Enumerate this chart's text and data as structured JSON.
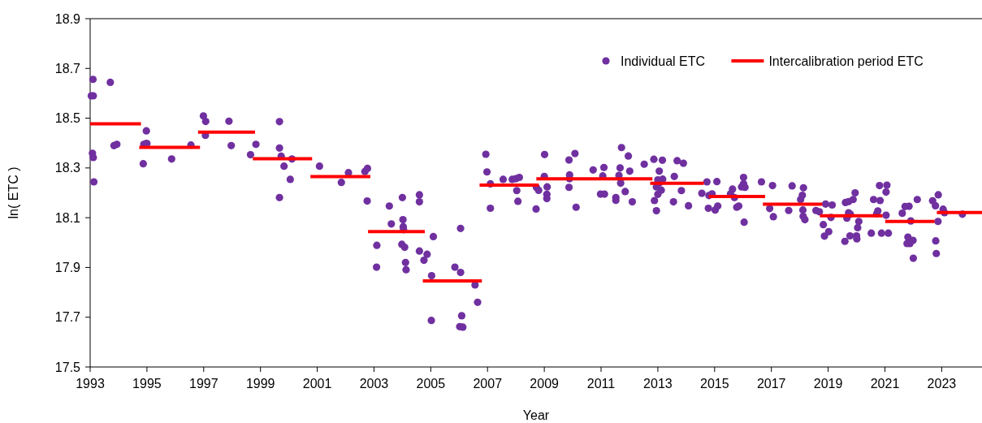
{
  "chart_data": {
    "type": "scatter",
    "xlabel": "Year",
    "ylabel": "ln( ETC )",
    "xlim": [
      1993,
      2024.42
    ],
    "xticks": [
      1993,
      1995,
      1997,
      1999,
      2001,
      2003,
      2005,
      2007,
      2009,
      2011,
      2013,
      2015,
      2017,
      2019,
      2021,
      2023
    ],
    "ylim": [
      17.5,
      18.9
    ],
    "yticks": [
      17.5,
      17.7,
      17.9,
      18.1,
      18.3,
      18.5,
      18.7,
      18.9
    ],
    "grid": false,
    "legend": "top right",
    "series": [
      {
        "name": "Individual ETC",
        "color": "#7030a0",
        "marker": "circle",
        "x": [
          1993.1,
          1993.04,
          1993.11,
          1993.71,
          1993.84,
          1993.94,
          1993.08,
          1993.11,
          1993.13,
          1994.98,
          1994.89,
          1994.97,
          1995.0,
          1994.87,
          1995.87,
          1996.55,
          1996.99,
          1997.07,
          1997.06,
          1997.89,
          1997.97,
          1998.65,
          1998.84,
          1999.67,
          1999.67,
          1999.73,
          1999.83,
          2000.11,
          2000.05,
          1999.67,
          2001.08,
          2001.85,
          2002.1,
          2002.68,
          2002.77,
          2002.76,
          2003.1,
          2003.09,
          2003.54,
          2003.61,
          2004.0,
          2004.02,
          2004.03,
          2004.04,
          2003.98,
          2004.08,
          2004.11,
          2004.13,
          2004.6,
          2004.6,
          2004.6,
          2004.87,
          2004.76,
          2005.09,
          2005.03,
          2005.02,
          2006.05,
          2005.85,
          2006.05,
          2006.09,
          2006.02,
          2006.13,
          2006.56,
          2006.65,
          2006.94,
          2006.98,
          2007.1,
          2007.1,
          2007.55,
          2007.87,
          2008.0,
          2008.12,
          2008.03,
          2008.07,
          2008.71,
          2008.72,
          2008.8,
          2009.01,
          2009.0,
          2009.1,
          2009.09,
          2009.09,
          2009.87,
          2010.08,
          2009.89,
          2009.89,
          2009.87,
          2010.12,
          2010.72,
          2011.1,
          2011.06,
          2010.98,
          2011.12,
          2011.52,
          2011.52,
          2011.72,
          2011.67,
          2011.63,
          2011.69,
          2011.96,
          2012.01,
          2011.85,
          2012.1,
          2012.52,
          2012.86,
          2013.16,
          2013.05,
          2013.0,
          2013.17,
          2013.05,
          2012.95,
          2013.12,
          2013.0,
          2012.88,
          2012.95,
          2013.58,
          2013.68,
          2013.9,
          2013.83,
          2013.55,
          2014.08,
          2014.55,
          2014.73,
          2014.8,
          2014.91,
          2014.78,
          2015.02,
          2015.11,
          2015.08,
          2015.63,
          2015.56,
          2015.7,
          2015.78,
          2015.85,
          2016.02,
          2016.02,
          2015.95,
          2016.07,
          2016.04,
          2016.65,
          2017.04,
          2016.94,
          2017.07,
          2017.61,
          2017.73,
          2018.13,
          2018.09,
          2018.03,
          2018.11,
          2018.12,
          2018.18,
          2018.57,
          2018.69,
          2018.91,
          2019.14,
          2019.1,
          2018.83,
          2019.02,
          2018.87,
          2019.59,
          2019.61,
          2019.72,
          2019.88,
          2019.95,
          2019.72,
          2019.78,
          2019.66,
          2019.77,
          2020.0,
          2020.01,
          2020.08,
          2020.04,
          2020.52,
          2020.6,
          2020.83,
          2020.75,
          2020.71,
          2020.81,
          2021.07,
          2021.04,
          2021.04,
          2020.88,
          2021.12,
          2021.61,
          2021.71,
          2021.85,
          2021.91,
          2021.81,
          2021.99,
          2021.88,
          2021.78,
          2022.0,
          2022.14,
          2022.68,
          2022.78,
          2022.88,
          2023.05,
          2023.1,
          2022.87,
          2022.79,
          2022.81,
          2023.73
        ],
        "values": [
          18.656,
          18.59,
          18.59,
          18.644,
          18.39,
          18.395,
          18.359,
          18.342,
          18.244,
          18.449,
          18.395,
          18.398,
          18.398,
          18.317,
          18.336,
          18.392,
          18.509,
          18.487,
          18.431,
          18.488,
          18.39,
          18.353,
          18.395,
          18.486,
          18.38,
          18.347,
          18.307,
          18.336,
          18.254,
          18.181,
          18.307,
          18.242,
          18.281,
          18.286,
          18.298,
          18.167,
          17.989,
          17.901,
          18.147,
          18.075,
          18.181,
          18.092,
          18.064,
          18.052,
          17.993,
          17.981,
          17.92,
          17.891,
          18.192,
          18.164,
          17.966,
          17.953,
          17.929,
          18.024,
          17.867,
          17.687,
          18.057,
          17.901,
          17.88,
          17.706,
          17.662,
          17.66,
          17.83,
          17.76,
          18.355,
          18.284,
          18.236,
          18.138,
          18.254,
          18.254,
          18.257,
          18.262,
          18.209,
          18.166,
          18.135,
          18.222,
          18.21,
          18.354,
          18.266,
          18.224,
          18.194,
          18.177,
          18.332,
          18.358,
          18.272,
          18.257,
          18.222,
          18.142,
          18.292,
          18.302,
          18.268,
          18.195,
          18.195,
          18.181,
          18.17,
          18.382,
          18.3,
          18.27,
          18.239,
          18.348,
          18.287,
          18.205,
          18.164,
          18.315,
          18.335,
          18.331,
          18.287,
          18.252,
          18.255,
          18.24,
          18.224,
          18.211,
          18.194,
          18.169,
          18.128,
          18.266,
          18.329,
          18.319,
          18.209,
          18.164,
          18.148,
          18.198,
          18.244,
          18.189,
          18.196,
          18.138,
          18.131,
          18.147,
          18.245,
          18.215,
          18.196,
          18.181,
          18.142,
          18.147,
          18.262,
          18.237,
          18.224,
          18.222,
          18.082,
          18.244,
          18.229,
          18.137,
          18.104,
          18.129,
          18.228,
          18.22,
          18.19,
          18.173,
          18.131,
          18.105,
          18.092,
          18.129,
          18.124,
          18.155,
          18.151,
          18.101,
          18.072,
          18.044,
          18.026,
          18.005,
          18.161,
          18.165,
          18.173,
          18.2,
          18.12,
          18.114,
          18.098,
          18.027,
          18.027,
          18.015,
          18.085,
          18.06,
          18.038,
          18.173,
          18.169,
          18.127,
          18.116,
          18.229,
          18.231,
          18.203,
          18.11,
          18.038,
          18.038,
          18.118,
          18.145,
          18.146,
          18.087,
          18.022,
          18.009,
          17.996,
          17.996,
          17.937,
          18.173,
          18.168,
          18.148,
          18.192,
          18.134,
          18.12,
          18.085,
          18.007,
          17.956,
          18.114
        ]
      },
      {
        "name": "Intercalibration period ETC",
        "type": "line",
        "color": "#ff0000",
        "marker": "none",
        "line_style": "solid",
        "x": [
          1993,
          1994.79,
          null,
          1994.73,
          1996.87,
          null,
          1996.8,
          1998.81,
          null,
          1998.73,
          2000.82,
          null,
          2000.76,
          2002.87,
          null,
          2002.79,
          2004.79,
          null,
          2004.72,
          2006.8,
          null,
          2006.72,
          2008.8,
          null,
          2008.72,
          2012.81,
          null,
          2012.73,
          2014.62,
          null,
          2014.79,
          2016.78,
          null,
          2016.7,
          2018.79,
          null,
          2018.71,
          2020.92,
          null,
          2021.01,
          2022.75,
          null,
          2022.83,
          2024.42
        ],
        "values": [
          18.477,
          18.477,
          null,
          18.383,
          18.383,
          null,
          18.444,
          18.444,
          null,
          18.337,
          18.337,
          null,
          18.265,
          18.265,
          null,
          18.044,
          18.044,
          null,
          17.846,
          17.846,
          null,
          18.231,
          18.231,
          null,
          18.256,
          18.256,
          null,
          18.238,
          18.238,
          null,
          18.185,
          18.185,
          null,
          18.154,
          18.154,
          null,
          18.108,
          18.108,
          null,
          18.085,
          18.085,
          null,
          18.121,
          18.121
        ]
      }
    ]
  }
}
